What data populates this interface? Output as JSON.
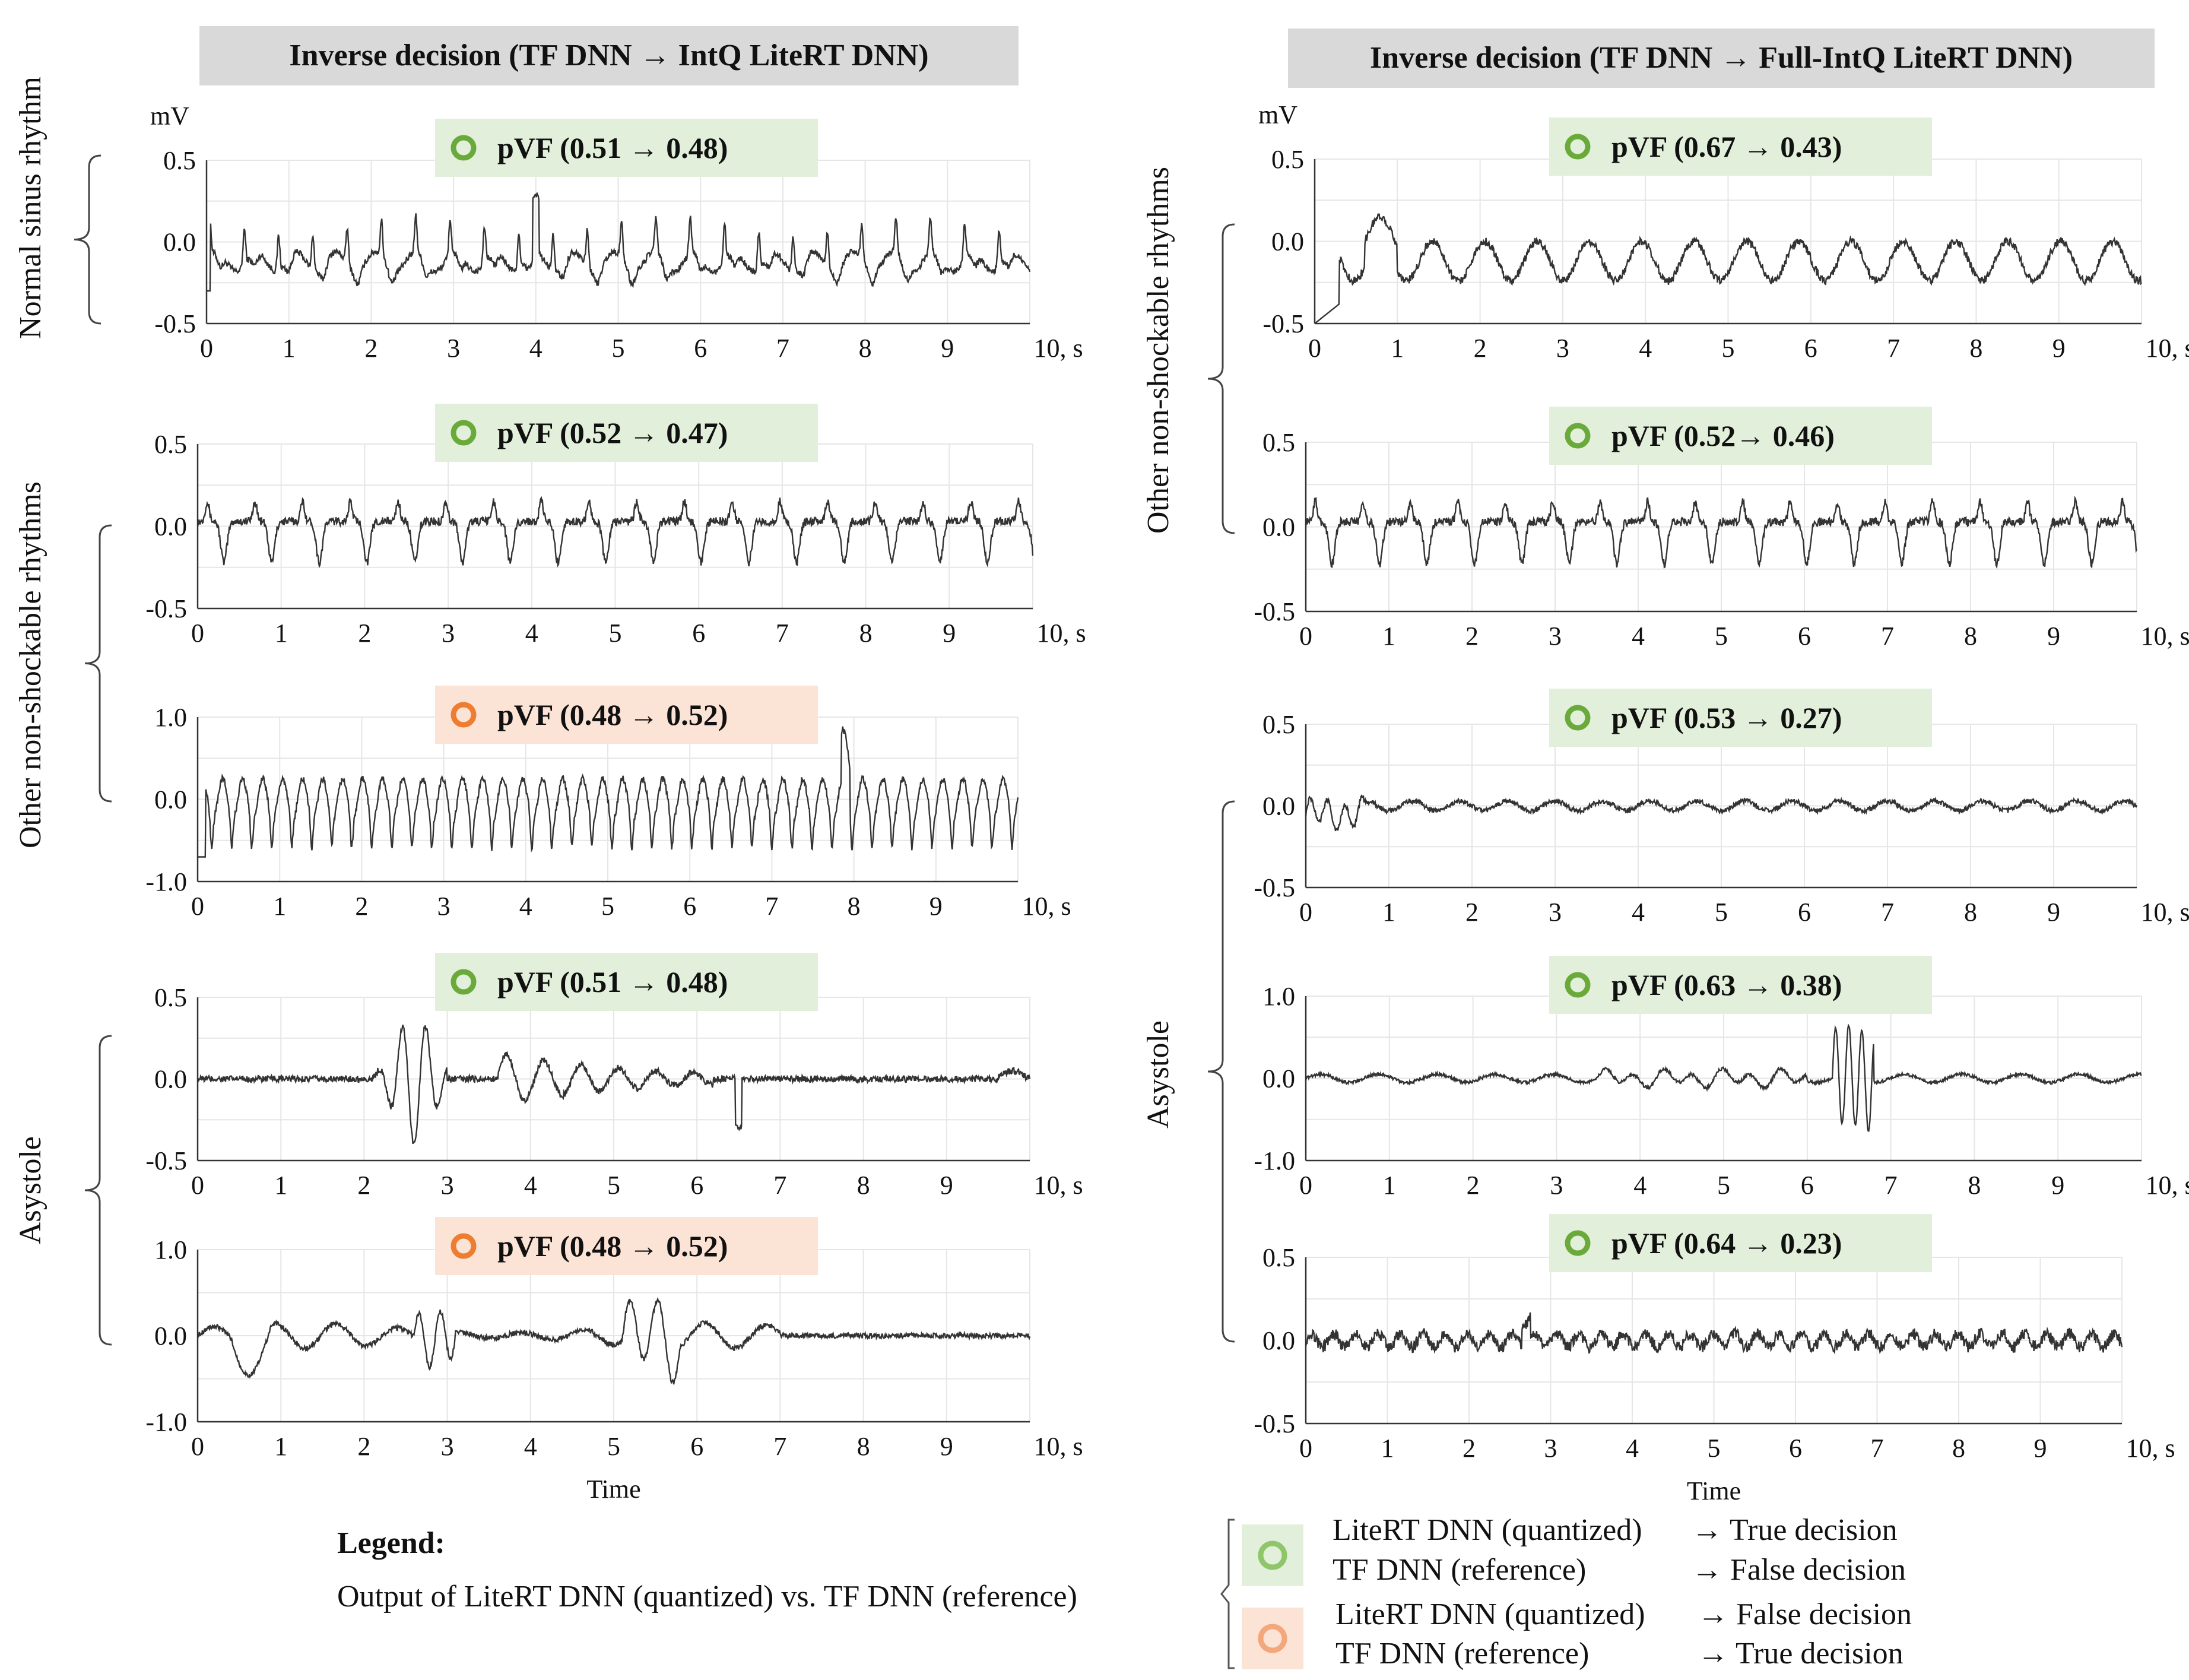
{
  "headers": {
    "left": "Inverse decision (TF DNN → IntQ LiteRT DNN)",
    "right": "Inverse decision (TF DNN → Full-IntQ LiteRT DNN)"
  },
  "axis_common": {
    "y_unit": "mV",
    "x_suffix": "10, s",
    "time_label": "Time"
  },
  "group_labels": [
    {
      "id": "l_nsr",
      "text": "Normal sinus rhythm"
    },
    {
      "id": "l_other",
      "text": "Other non-shockable rhythms"
    },
    {
      "id": "l_asys",
      "text": "Asystole"
    },
    {
      "id": "r_other",
      "text": "Other non-shockable rhythms"
    },
    {
      "id": "r_asys",
      "text": "Asystole"
    }
  ],
  "colors": {
    "green": "#6aaa3a",
    "green_bg": "#e2efda",
    "orange": "#ed7d31",
    "orange_bg": "#fbe3d6",
    "header_bg": "#d9d9d9",
    "trace": "#333333",
    "grid": "#e6e6e6"
  },
  "chart_data": [
    {
      "type": "line",
      "id": "L1",
      "badge": "pVF (0.51 → 0.48)",
      "decision": "true",
      "rhythm": "Normal sinus rhythm",
      "ylim": [
        -0.5,
        0.5
      ],
      "yticks": [
        "0.5",
        "0.0",
        "-0.5"
      ],
      "xticks": [
        "0",
        "1",
        "2",
        "3",
        "4",
        "5",
        "6",
        "7",
        "8",
        "9",
        "10, s"
      ],
      "ylabel": "mV",
      "xlabel": "",
      "signal": "nsr_fast"
    },
    {
      "type": "line",
      "id": "L2",
      "badge": "pVF (0.52 → 0.47)",
      "decision": "true",
      "rhythm": "Other non-shockable rhythms",
      "ylim": [
        -0.5,
        0.5
      ],
      "yticks": [
        "0.5",
        "0.0",
        "-0.5"
      ],
      "xticks": [
        "0",
        "1",
        "2",
        "3",
        "4",
        "5",
        "6",
        "7",
        "8",
        "9",
        "10, s"
      ],
      "ylabel": "",
      "xlabel": "",
      "signal": "other_neg"
    },
    {
      "type": "line",
      "id": "L3",
      "badge": "pVF (0.48 → 0.52)",
      "decision": "false",
      "rhythm": "Other non-shockable rhythms",
      "ylim": [
        -1.0,
        1.0
      ],
      "yticks": [
        "1.0",
        "0.0",
        "-1.0"
      ],
      "xticks": [
        "0",
        "1",
        "2",
        "3",
        "4",
        "5",
        "6",
        "7",
        "8",
        "9",
        "10, s"
      ],
      "ylabel": "",
      "xlabel": "",
      "signal": "other_fast"
    },
    {
      "type": "line",
      "id": "L4",
      "badge": "pVF (0.51 → 0.48)",
      "decision": "true",
      "rhythm": "Asystole",
      "ylim": [
        -0.5,
        0.5
      ],
      "yticks": [
        "0.5",
        "0.0",
        "-0.5"
      ],
      "xticks": [
        "0",
        "1",
        "2",
        "3",
        "4",
        "5",
        "6",
        "7",
        "8",
        "9",
        "10, s"
      ],
      "ylabel": "",
      "xlabel": "",
      "signal": "asys_burst"
    },
    {
      "type": "line",
      "id": "L5",
      "badge": "pVF (0.48 → 0.52)",
      "decision": "false",
      "rhythm": "Asystole",
      "ylim": [
        -1.0,
        1.0
      ],
      "yticks": [
        "1.0",
        "0.0",
        "-1.0"
      ],
      "xticks": [
        "0",
        "1",
        "2",
        "3",
        "4",
        "5",
        "6",
        "7",
        "8",
        "9",
        "10, s"
      ],
      "ylabel": "",
      "xlabel": "Time",
      "signal": "asys_wave"
    },
    {
      "type": "line",
      "id": "R1",
      "badge": "pVF (0.67 → 0.43)",
      "decision": "true",
      "rhythm": "Other non-shockable rhythms",
      "ylim": [
        -0.5,
        0.5
      ],
      "yticks": [
        "0.5",
        "0.0",
        "-0.5"
      ],
      "xticks": [
        "0",
        "1",
        "2",
        "3",
        "4",
        "5",
        "6",
        "7",
        "8",
        "9",
        "10, s"
      ],
      "ylabel": "mV",
      "xlabel": "",
      "signal": "other_slow"
    },
    {
      "type": "line",
      "id": "R2",
      "badge": "pVF (0.52→ 0.46)",
      "decision": "true",
      "rhythm": "Other non-shockable rhythms",
      "ylim": [
        -0.5,
        0.5
      ],
      "yticks": [
        "0.5",
        "0.0",
        "-0.5"
      ],
      "xticks": [
        "0",
        "1",
        "2",
        "3",
        "4",
        "5",
        "6",
        "7",
        "8",
        "9",
        "10, s"
      ],
      "ylabel": "",
      "xlabel": "",
      "signal": "other_neg"
    },
    {
      "type": "line",
      "id": "R3",
      "badge": "pVF (0.53 → 0.27)",
      "decision": "true",
      "rhythm": "Asystole",
      "ylim": [
        -0.5,
        0.5
      ],
      "yticks": [
        "0.5",
        "0.0",
        "-0.5"
      ],
      "xticks": [
        "0",
        "1",
        "2",
        "3",
        "4",
        "5",
        "6",
        "7",
        "8",
        "9",
        "10, s"
      ],
      "ylabel": "",
      "xlabel": "",
      "signal": "asys_flat"
    },
    {
      "type": "line",
      "id": "R4",
      "badge": "pVF (0.63 → 0.38)",
      "decision": "true",
      "rhythm": "Asystole",
      "ylim": [
        -1.0,
        1.0
      ],
      "yticks": [
        "1.0",
        "0.0",
        "-1.0"
      ],
      "xticks": [
        "0",
        "1",
        "2",
        "3",
        "4",
        "5",
        "6",
        "7",
        "8",
        "9",
        "10, s"
      ],
      "ylabel": "",
      "xlabel": "",
      "signal": "asys_spike"
    },
    {
      "type": "line",
      "id": "R5",
      "badge": "pVF (0.64 → 0.23)",
      "decision": "true",
      "rhythm": "Asystole",
      "ylim": [
        -0.5,
        0.5
      ],
      "yticks": [
        "0.5",
        "0.0",
        "-0.5"
      ],
      "xticks": [
        "0",
        "1",
        "2",
        "3",
        "4",
        "5",
        "6",
        "7",
        "8",
        "9",
        "10, s"
      ],
      "ylabel": "",
      "xlabel": "Time",
      "signal": "asys_noise"
    }
  ],
  "legend": {
    "title": "Legend:",
    "subtitle": "Output of LiteRT DNN (quantized) vs. TF DNN (reference)",
    "rows": [
      {
        "model": "LiteRT DNN (quantized)",
        "decision": "→ True decision"
      },
      {
        "model": "TF DNN (reference)",
        "decision": "→ False decision"
      },
      {
        "model": "LiteRT DNN (quantized)",
        "decision": "→ False decision"
      },
      {
        "model": "TF DNN (reference)",
        "decision": "→ True decision"
      }
    ]
  }
}
